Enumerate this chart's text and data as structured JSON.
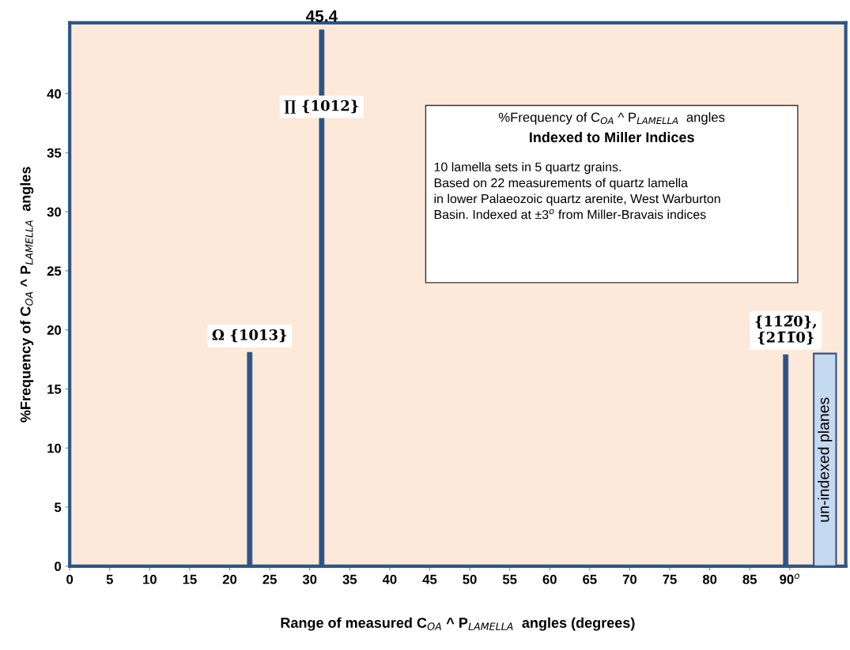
{
  "chart_data": {
    "type": "bar",
    "title": "%Frequency of C$_{OA}$ ^ P$_{LAMELLA}$  angles",
    "subtitle": "Indexed to Miller Indices",
    "xlabel": "Range of measured C$_{OA}$ ^ P$_{LAMELLA}$  angles (degrees)",
    "ylabel": "%Frequency of C$_{OA}$ ^ P$_{LAMELLA}$  angles",
    "series": [
      {
        "x": [
          22.5,
          31.5,
          89.5
        ],
        "values": [
          18.1,
          45.4,
          17.9
        ],
        "color": "#2f5486",
        "value_labels": [
          null,
          "45.4",
          null
        ]
      },
      {
        "name": "un-indexed planes",
        "x": [
          94.4
        ],
        "values": [
          18
        ],
        "color": "#c5d9f1"
      }
    ],
    "annotations": [
      {
        "text": "Ω {1013}",
        "x": 22.5,
        "y": 18.1
      },
      {
        "text": "∏ {1012}",
        "x": 31.5,
        "y": 37.5
      },
      {
        "text": "{112̅0},\n{21̅1̅0}",
        "x": 89.5,
        "y": 17.9
      },
      "10 lamella sets in 5 quartz grains.\nBased on 22 measurements of quartz lamella\nin lower Palaeozoic quartz arenite, West Warburton\nBasin. Indexed at ±3$^{o}$ from Miller-Bravais indices"
    ],
    "xlim": [
      0,
      97
    ],
    "xticks": [
      0,
      5,
      10,
      15,
      20,
      25,
      30,
      35,
      40,
      45,
      50,
      55,
      60,
      65,
      70,
      75,
      80,
      85,
      {
        "value": 90,
        "label": "90$^{o}$"
      }
    ],
    "ylim": [
      0,
      46
    ],
    "yticks": [
      0,
      5,
      10,
      15,
      20,
      25,
      30,
      35,
      40
    ],
    "grid": false,
    "legend": false
  }
}
